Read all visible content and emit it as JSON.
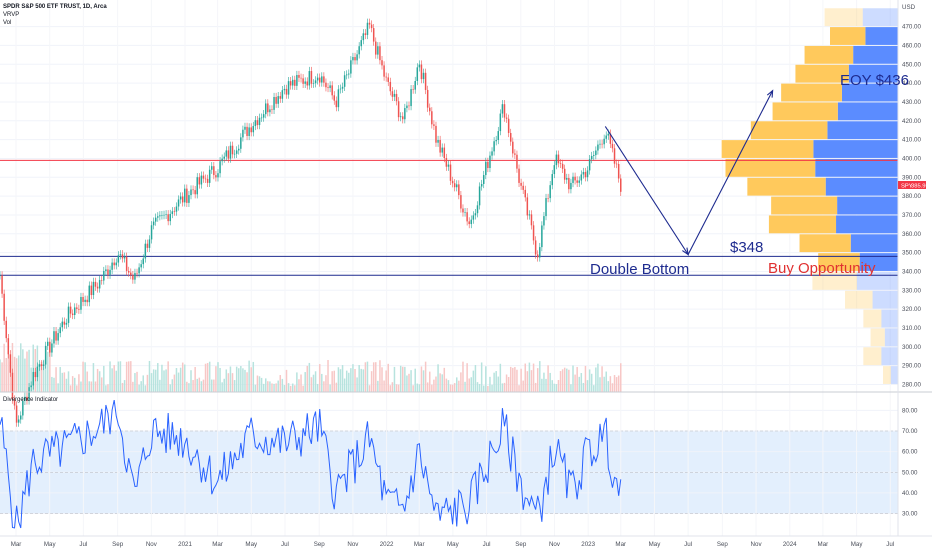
{
  "header": {
    "symbol_line": "SPDR S&P 500 ETF TRUST, 1D, Arca",
    "indicator_vrvp": "VRVP",
    "indicator_vol": "Vol",
    "currency": "USD",
    "oscillator_title": "Divergence Indicator"
  },
  "price_tag": {
    "symbol": "SPY",
    "value": "385.95",
    "color": "#f23645"
  },
  "colors": {
    "up": "#26a69a",
    "down": "#ef5350",
    "rsi_line": "#2962ff",
    "rsi_band": "#e3effd",
    "vp_up": "#5b8cff",
    "vp_down": "#ffc95c",
    "red_line": "#f23645",
    "blue_line": "#1e2b8f"
  },
  "annotations": {
    "target_label": "EOY $436",
    "low_label": "$348",
    "pattern_label": "Double Bottom",
    "action_label": "Buy Opportunity"
  },
  "time_axis": [
    "Mar",
    "May",
    "Jul",
    "Sep",
    "Nov",
    "2021",
    "Mar",
    "May",
    "Jul",
    "Sep",
    "Nov",
    "2022",
    "Mar",
    "May",
    "Jul",
    "Sep",
    "Nov",
    "2023",
    "Mar",
    "May",
    "Jul",
    "Sep",
    "Nov",
    "2024",
    "Mar",
    "May",
    "Jul"
  ],
  "chart_data": [
    {
      "type": "line",
      "title": "SPDR S&P 500 ETF TRUST, 1D, Arca",
      "ylabel": "USD",
      "ylim": [
        276,
        482
      ],
      "y_ticks": [
        280,
        290,
        300,
        310,
        320,
        330,
        340,
        350,
        360,
        370,
        380,
        390,
        400,
        410,
        420,
        430,
        440,
        450,
        460,
        470
      ],
      "series": [
        {
          "name": "SPY",
          "x": [
            "2020-02",
            "2020-03",
            "2020-04",
            "2020-06",
            "2020-08",
            "2020-09",
            "2020-10",
            "2020-11",
            "2021-01",
            "2021-03",
            "2021-05",
            "2021-07",
            "2021-09",
            "2021-10",
            "2021-12",
            "2022-01",
            "2022-02",
            "2022-03",
            "2022-04",
            "2022-06",
            "2022-08",
            "2022-09",
            "2022-10",
            "2022-11",
            "2022-12",
            "2023-01",
            "2023-02",
            "2023-03"
          ],
          "values": [
            338,
            258,
            285,
            316,
            335,
            350,
            335,
            362,
            380,
            395,
            418,
            438,
            445,
            430,
            470,
            440,
            420,
            452,
            410,
            365,
            428,
            385,
            349,
            400,
            385,
            395,
            415,
            386
          ]
        }
      ],
      "horizontal_levels": [
        {
          "value": 399,
          "color": "#f23645"
        },
        {
          "value": 348,
          "color": "#1e2b8f"
        },
        {
          "value": 338,
          "color": "#1e2b8f"
        }
      ],
      "projection": [
        {
          "x": "2023-02",
          "value": 417
        },
        {
          "x": "2023-07",
          "value": 349
        },
        {
          "x": "2023-12",
          "value": 436
        }
      ]
    },
    {
      "type": "line",
      "title": "Divergence Indicator",
      "ylim": [
        22,
        86
      ],
      "y_ticks": [
        30,
        40,
        50,
        60,
        70,
        80
      ],
      "band": [
        30,
        70
      ],
      "series": [
        {
          "name": "RSI",
          "x": [
            "2020-02",
            "2020-03",
            "2020-04",
            "2020-06",
            "2020-08",
            "2020-09",
            "2020-10",
            "2020-11",
            "2021-01",
            "2021-03",
            "2021-05",
            "2021-07",
            "2021-09",
            "2021-10",
            "2021-12",
            "2022-01",
            "2022-02",
            "2022-03",
            "2022-04",
            "2022-06",
            "2022-08",
            "2022-09",
            "2022-10",
            "2022-11",
            "2022-12",
            "2023-01",
            "2023-02",
            "2023-03"
          ],
          "values": [
            75,
            22,
            55,
            62,
            72,
            82,
            38,
            70,
            66,
            45,
            68,
            64,
            72,
            40,
            66,
            35,
            32,
            60,
            28,
            35,
            72,
            44,
            28,
            62,
            40,
            60,
            68,
            36
          ]
        }
      ]
    }
  ]
}
